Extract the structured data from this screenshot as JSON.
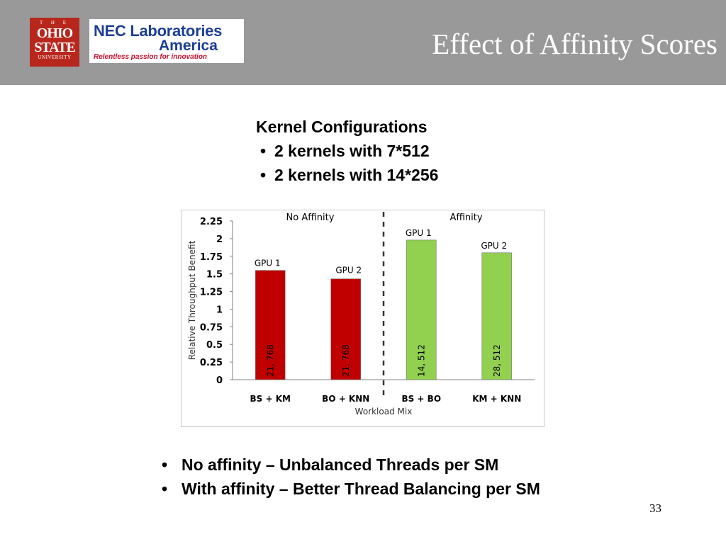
{
  "header": {
    "title": "Effect of Affinity Scores",
    "osu_logo": {
      "line1": "T H E",
      "line2": "OHIO",
      "line3": "STATE",
      "line4": "UNIVERSITY"
    },
    "nec_logo": {
      "line1": "NEC Laboratories",
      "line2": "America",
      "line3": "Relentless passion for innovation"
    },
    "background_color": "#999999"
  },
  "config": {
    "heading": "Kernel Configurations",
    "bullets": [
      "2 kernels with 7*512",
      "2 kernels with 14*256"
    ]
  },
  "chart_data": {
    "type": "bar",
    "categories": [
      "BS + KM",
      "BO + KNN",
      "BS + BO",
      "KM + KNN"
    ],
    "values": [
      1.55,
      1.43,
      1.98,
      1.8
    ],
    "bar_colors": [
      "#c00000",
      "#c00000",
      "#92d050",
      "#92d050"
    ],
    "bar_labels": [
      "GPU 1",
      "GPU 2",
      "GPU 1",
      "GPU 2"
    ],
    "bar_inner_labels": [
      "21, 768",
      "21, 768",
      "14, 512",
      "28, 512"
    ],
    "group_labels": [
      "No Affinity",
      "Affinity"
    ],
    "xlabel": "Workload Mix",
    "ylabel": "Relative Throughput Benefit",
    "ylim": [
      0,
      2.25
    ],
    "yticks": [
      "0",
      "0.25",
      "0.5",
      "0.75",
      "1",
      "1.25",
      "1.5",
      "1.75",
      "2",
      "2.25"
    ],
    "grid": false,
    "divider": "dashed vertical line between BO + KNN and BS + BO"
  },
  "bottom": {
    "bullets": [
      "No affinity – Unbalanced Threads per SM",
      "With affinity – Better Thread Balancing per SM"
    ]
  },
  "page_number": "33"
}
